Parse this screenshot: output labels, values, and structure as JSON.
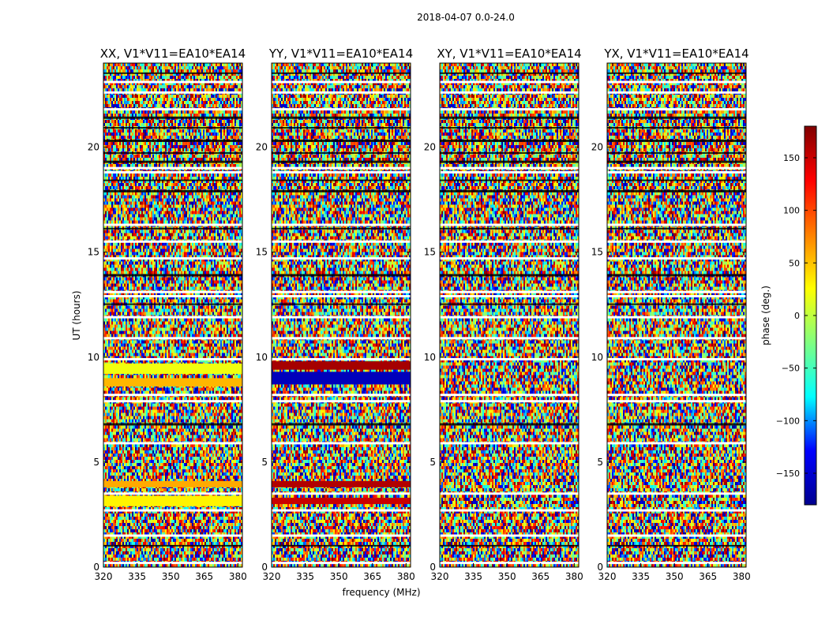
{
  "suptitle": "2018-04-07 0.0-24.0",
  "chart_data": {
    "type": "heatmap",
    "title": "2018-04-07 0.0-24.0",
    "xlabel": "frequency (MHz)",
    "ylabel": "UT (hours)",
    "xlim": [
      320,
      382
    ],
    "ylim": [
      0,
      24
    ],
    "xticks": [
      320,
      335,
      350,
      365,
      380
    ],
    "xtick_labels": [
      "320",
      "335",
      "350",
      "365",
      "380"
    ],
    "yticks": [
      0,
      5,
      10,
      15,
      20
    ],
    "ytick_labels": [
      "0",
      "5",
      "10",
      "15",
      "20"
    ],
    "panels": [
      {
        "name": "XX",
        "title": "XX, V1*V11=EA10*EA14",
        "coherent_bands": [
          {
            "t0": 2.9,
            "t1": 3.4,
            "phase": 30
          },
          {
            "t0": 3.8,
            "t1": 4.1,
            "phase": 60
          },
          {
            "t0": 8.6,
            "t1": 9.0,
            "phase": 55
          },
          {
            "t0": 9.2,
            "t1": 9.7,
            "phase": 20
          }
        ]
      },
      {
        "name": "YY",
        "title": "YY, V1*V11=EA10*EA14",
        "coherent_bands": [
          {
            "t0": 3.0,
            "t1": 3.3,
            "phase": 150
          },
          {
            "t0": 3.8,
            "t1": 4.1,
            "phase": 160
          },
          {
            "t0": 8.7,
            "t1": 9.3,
            "phase": -160
          },
          {
            "t0": 9.4,
            "t1": 9.8,
            "phase": 165
          }
        ]
      },
      {
        "name": "XY",
        "title": "XY, V1*V11=EA10*EA14",
        "coherent_bands": []
      },
      {
        "name": "YX",
        "title": "YX, V1*V11=EA10*EA14",
        "coherent_bands": []
      }
    ],
    "flagged_rows_ut": [
      0.2,
      1.5,
      2.7,
      3.5,
      5.9,
      7.9,
      8.2,
      9.9,
      10.9,
      11.9,
      12.9,
      13.1,
      14.7,
      15.5,
      16.3,
      18.8,
      19.0,
      21.8,
      22.6,
      23.1
    ],
    "dark_rows_ut": [
      1.0,
      6.8,
      12.5,
      13.9,
      16.1,
      17.9,
      18.4,
      19.3,
      19.7,
      20.3,
      20.9,
      21.4,
      23.5
    ],
    "colorbar": {
      "label": "phase (deg.)",
      "range": [
        -180,
        180
      ],
      "ticks": [
        150,
        100,
        50,
        0,
        -50,
        -100,
        -150
      ],
      "tick_labels": [
        "150",
        "100",
        "50",
        "0",
        "−50",
        "−100",
        "−150"
      ],
      "colormap": "jet",
      "colors": [
        "#00008f",
        "#0000ff",
        "#00ffff",
        "#80ff80",
        "#ffff00",
        "#ff8000",
        "#ff0000",
        "#800000"
      ]
    }
  }
}
